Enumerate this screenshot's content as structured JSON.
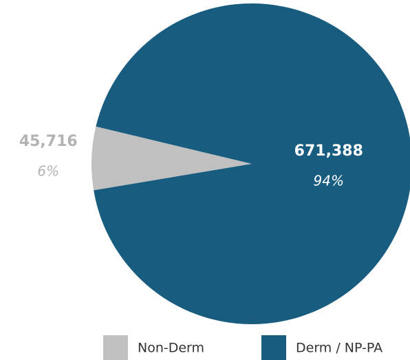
{
  "chart_data": {
    "type": "pie",
    "categories": [
      "Non-Derm",
      "Derm / NP-PA"
    ],
    "values": [
      45716,
      671388
    ],
    "value_labels": [
      "45,716",
      "671,388"
    ],
    "shares": [
      6,
      94
    ],
    "share_labels": [
      "6%",
      "94%"
    ],
    "colors": [
      "#c0c0c0",
      "#185d80"
    ]
  }
}
